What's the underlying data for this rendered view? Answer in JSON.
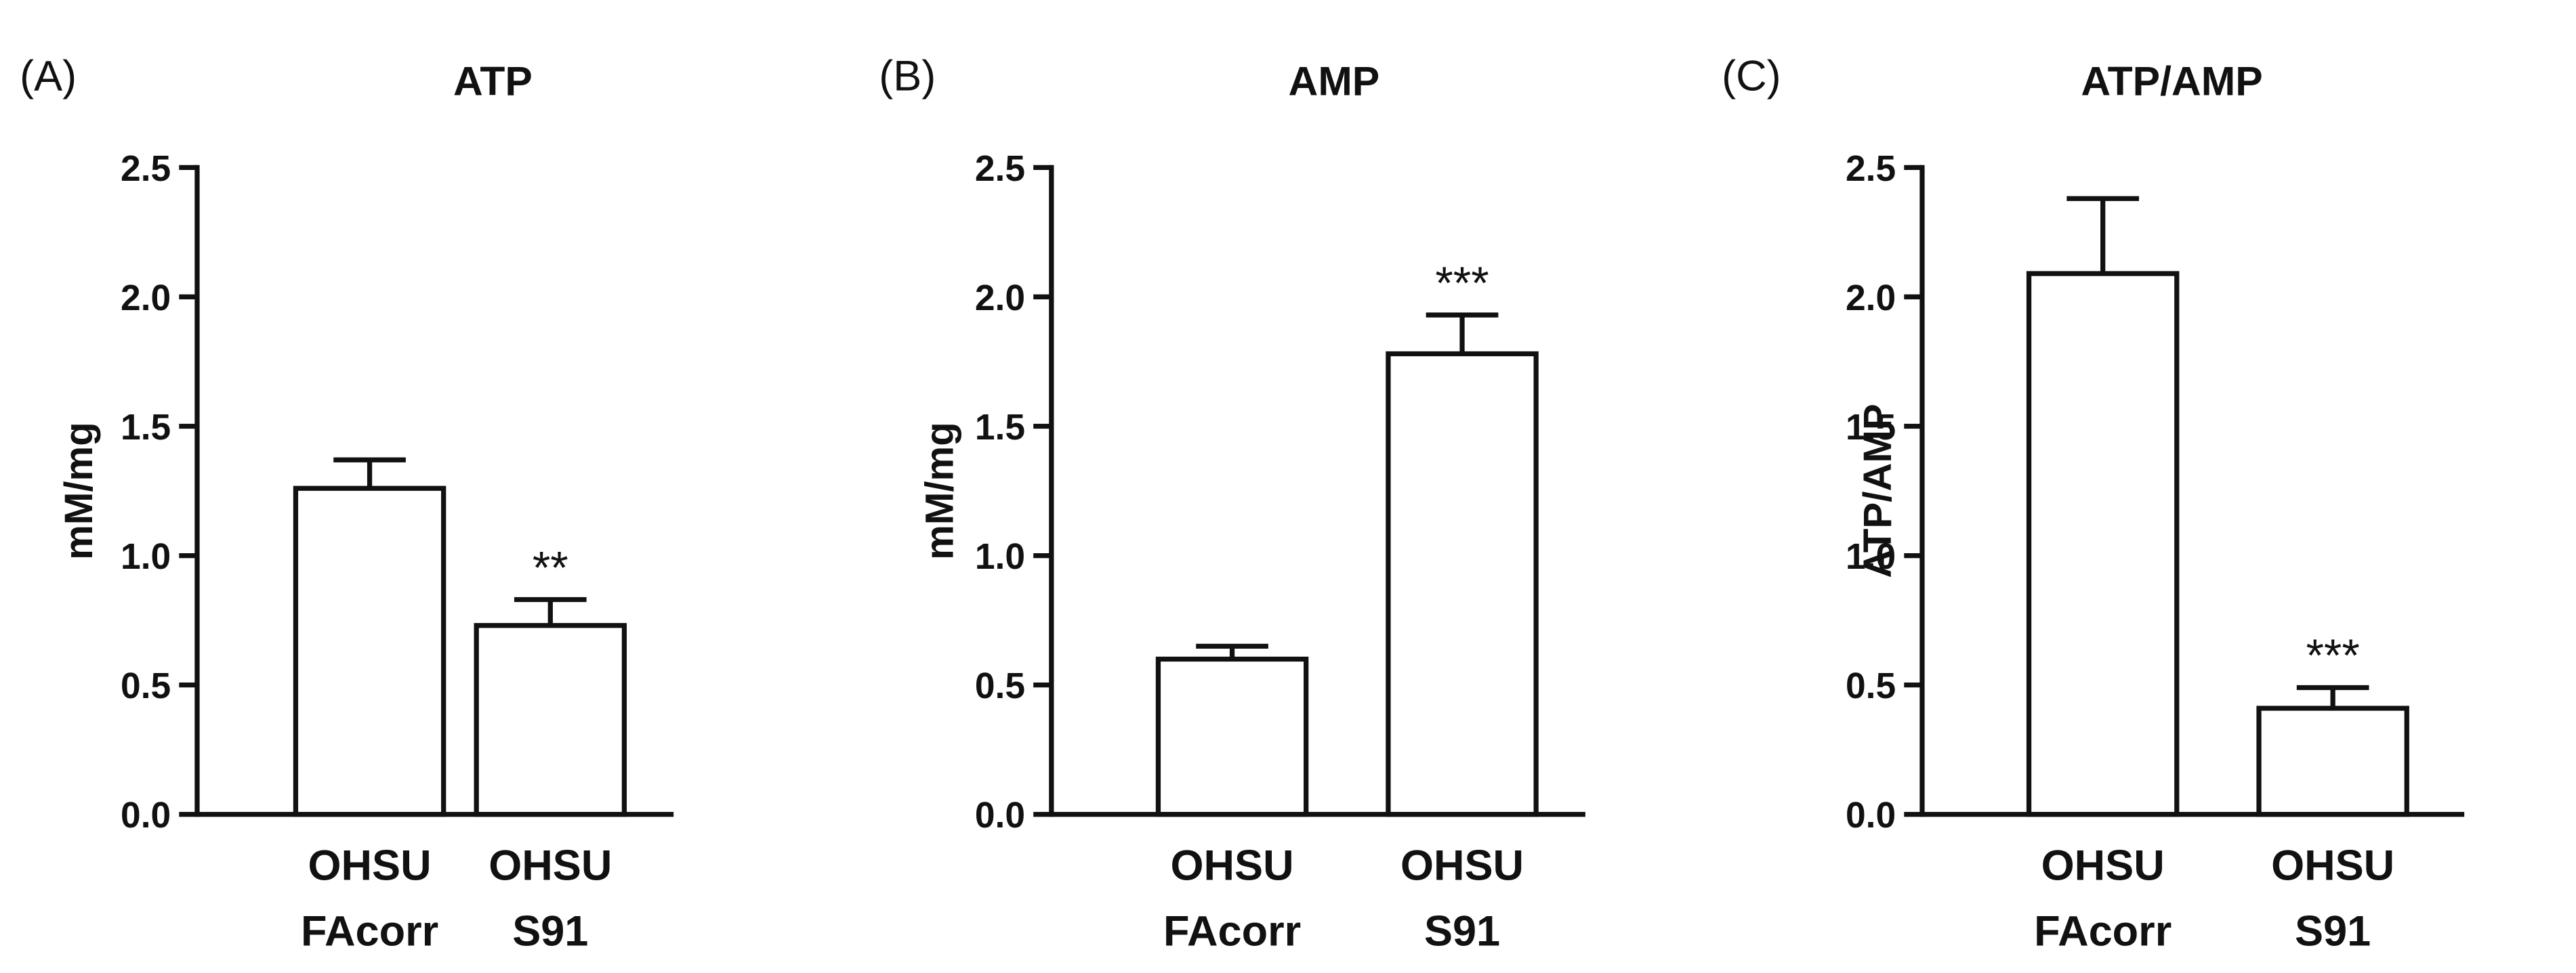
{
  "chart_data": [
    {
      "type": "bar",
      "panel_label": "(A)",
      "title": "ATP",
      "y_label": "mM/mg",
      "categories": [
        [
          "OHSU",
          "FAcorr"
        ],
        [
          "OHSU",
          "S91"
        ]
      ],
      "values": [
        1.26,
        0.73
      ],
      "errors": [
        0.11,
        0.1
      ],
      "value_annotations": [
        null,
        "**"
      ],
      "color": "#ffffff",
      "edge_color": "#111111",
      "ylim": [
        0,
        2.5
      ],
      "yticks": [
        {
          "value": 0,
          "label": "0.0"
        },
        {
          "value": 0.5,
          "label": "0.5"
        },
        {
          "value": 1,
          "label": "1.0"
        },
        {
          "value": 1.5,
          "label": "1.5"
        },
        {
          "value": 2,
          "label": "2.0"
        },
        {
          "value": 2.5,
          "label": "2.5"
        }
      ]
    },
    {
      "type": "bar",
      "panel_label": "(B)",
      "title": "AMP",
      "y_label": "mM/mg",
      "categories": [
        [
          "OHSU",
          "FAcorr"
        ],
        [
          "OHSU",
          "S91"
        ]
      ],
      "values": [
        0.6,
        1.78
      ],
      "errors": [
        0.05,
        0.15
      ],
      "value_annotations": [
        null,
        "***"
      ],
      "color": "#ffffff",
      "edge_color": "#111111",
      "ylim": [
        0,
        2.5
      ],
      "yticks": [
        {
          "value": 0,
          "label": "0.0"
        },
        {
          "value": 0.5,
          "label": "0.5"
        },
        {
          "value": 1,
          "label": "1.0"
        },
        {
          "value": 1.5,
          "label": "1.5"
        },
        {
          "value": 2,
          "label": "2.0"
        },
        {
          "value": 2.5,
          "label": "2.5"
        }
      ]
    },
    {
      "type": "bar",
      "panel_label": "(C)",
      "title": "ATP/AMP",
      "y_label": "ATP/AMP",
      "categories": [
        [
          "OHSU",
          "FAcorr"
        ],
        [
          "OHSU",
          "S91"
        ]
      ],
      "values": [
        2.09,
        0.41
      ],
      "errors": [
        0.29,
        0.08
      ],
      "value_annotations": [
        null,
        "***"
      ],
      "color": "#ffffff",
      "edge_color": "#111111",
      "ylim": [
        0,
        2.5
      ],
      "yticks": [
        {
          "value": 0,
          "label": "0.0"
        },
        {
          "value": 0.5,
          "label": "0.5"
        },
        {
          "value": 1,
          "label": "1.0"
        },
        {
          "value": 1.5,
          "label": "1.5"
        },
        {
          "value": 2,
          "label": "2.0"
        },
        {
          "value": 2.5,
          "label": "2.5"
        }
      ]
    }
  ]
}
